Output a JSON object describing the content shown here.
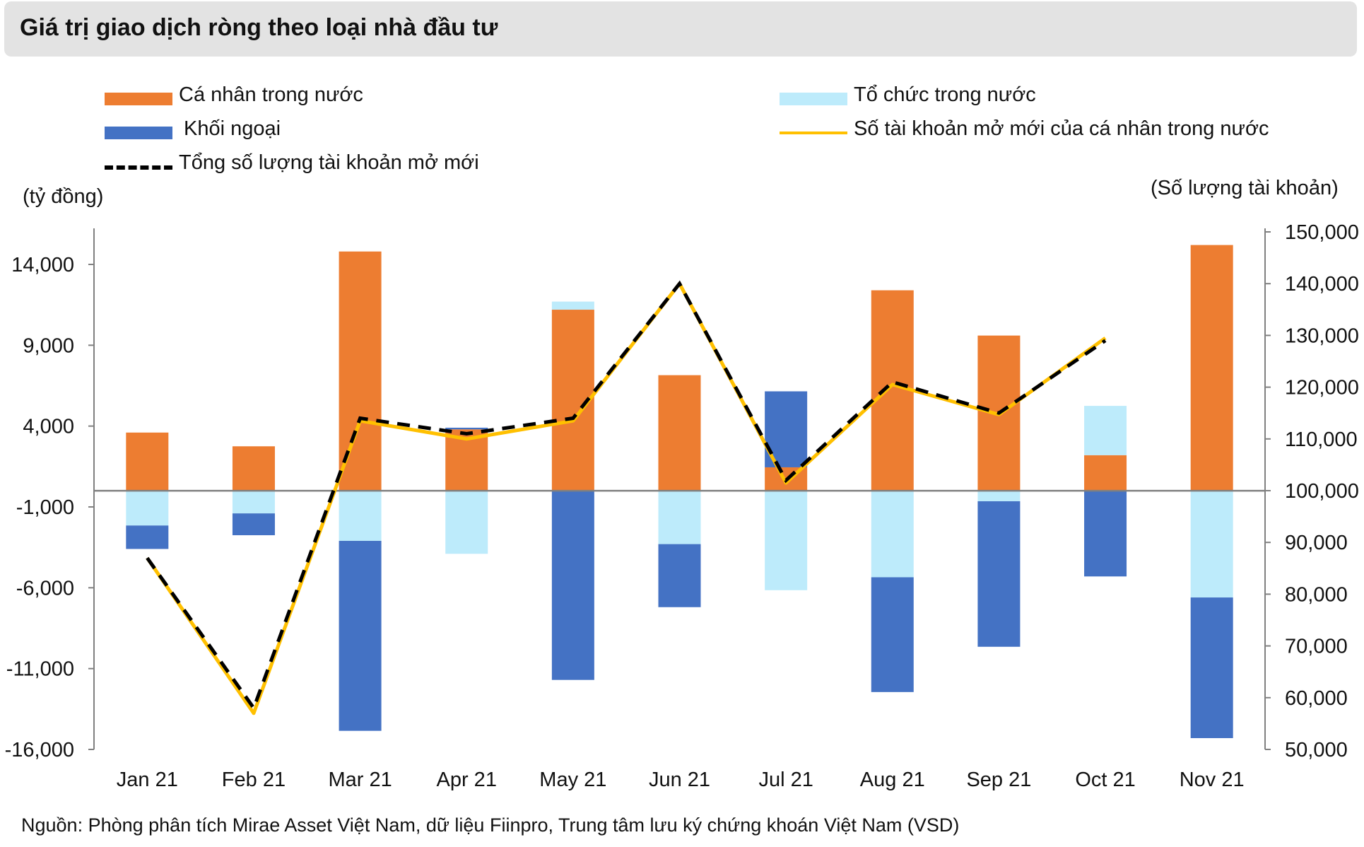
{
  "title": "Giá trị giao dịch ròng theo loại nhà đầu tư",
  "legend": {
    "individual": "Cá nhân trong nước",
    "institution": "Tổ chức trong nước",
    "foreign": "Khối ngoại",
    "new_individual_accounts": "Số tài khoản mở mới của cá nhân trong nước",
    "total_new_accounts": "Tổng số lượng tài khoản mở mới"
  },
  "left_unit": "(tỷ đồng)",
  "right_unit": "(Số lượng tài khoản)",
  "source": "Nguồn: Phòng phân tích Mirae Asset Việt Nam, dữ liệu Fiinpro, Trung tâm lưu ký chứng khoán Việt Nam (VSD)",
  "colors": {
    "individual": "#ED7D31",
    "institution": "#BDEBFB",
    "foreign": "#4472C4",
    "new_individual_accounts": "#FFC000",
    "total_new_accounts": "#000000",
    "axis": "#808080"
  },
  "chart_data": {
    "type": "bar",
    "stacked": true,
    "title": "Giá trị giao dịch ròng theo loại nhà đầu tư",
    "categories": [
      "Jan 21",
      "Feb 21",
      "Mar 21",
      "Apr 21",
      "May 21",
      "Jun 21",
      "Jul 21",
      "Aug 21",
      "Sep 21",
      "Oct 21",
      "Nov 21"
    ],
    "ylim": [
      -16000,
      16000
    ],
    "yticks": [
      14000,
      9000,
      4000,
      -1000,
      -6000,
      -11000,
      -16000
    ],
    "ytick_labels": [
      "14,000",
      "9,000",
      "4,000",
      "-1,000",
      "-6,000",
      "-11,000",
      "-16,000"
    ],
    "y2lim": [
      50000,
      150000
    ],
    "y2ticks": [
      150000,
      140000,
      130000,
      120000,
      110000,
      100000,
      90000,
      80000,
      70000,
      60000,
      50000
    ],
    "y2tick_labels": [
      "150,000",
      "140,000",
      "130,000",
      "120,000",
      "110,000",
      "100,000",
      "90,000",
      "80,000",
      "70,000",
      "60,000",
      "50,000"
    ],
    "series": [
      {
        "name": "Cá nhân trong nước",
        "type": "bar",
        "axis": "left",
        "values": [
          3600,
          2750,
          14800,
          3800,
          11200,
          7150,
          1450,
          12400,
          9600,
          2200,
          15200
        ]
      },
      {
        "name": "Tổ chức trong nước",
        "type": "bar",
        "axis": "left",
        "values": [
          -2150,
          -1400,
          -3100,
          -3900,
          500,
          -3300,
          -6150,
          -5350,
          -650,
          3050,
          -6600
        ]
      },
      {
        "name": "Khối ngoại",
        "type": "bar",
        "axis": "left",
        "values": [
          -1450,
          -1350,
          -11750,
          100,
          -11700,
          -3900,
          4700,
          -7100,
          -9000,
          -5300,
          -8700
        ]
      },
      {
        "name": "Số tài khoản mở mới của cá nhân trong nước",
        "type": "line",
        "axis": "right",
        "values": [
          87000,
          57000,
          113500,
          110000,
          113500,
          140000,
          101500,
          120500,
          114700,
          129500,
          null
        ]
      },
      {
        "name": "Tổng số lượng tài khoản mở mới",
        "type": "line",
        "axis": "right",
        "values": [
          87000,
          58000,
          114000,
          111000,
          114000,
          140000,
          102000,
          121000,
          115000,
          129000,
          null
        ]
      }
    ]
  }
}
